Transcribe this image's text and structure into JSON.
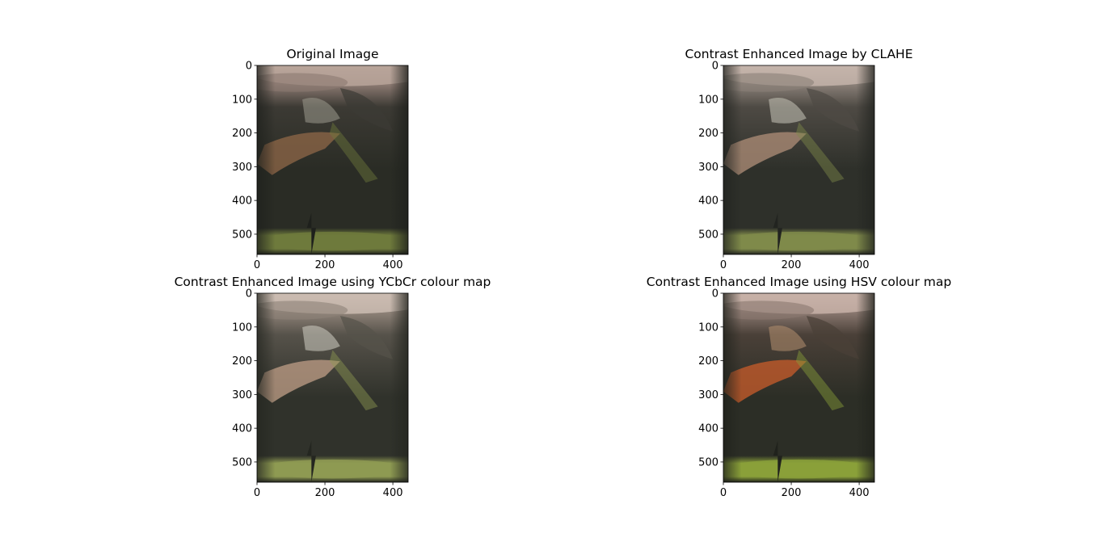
{
  "chart_data": [
    {
      "type": "image",
      "title": "Original Image",
      "xticks": [
        0,
        200,
        400
      ],
      "yticks": [
        0,
        100,
        200,
        300,
        400,
        500
      ],
      "xlim": [
        0,
        445
      ],
      "ylim": [
        560,
        0
      ],
      "palette": {
        "sky": "#b8a49a",
        "cloud": "#8c7a72",
        "rock": "#3c3a34",
        "forest": "#2a2c25",
        "slope": "#8a6446",
        "meadow": "#6e7a3c",
        "edge": "#1e201c",
        "highlight": "#9c9a8e"
      }
    },
    {
      "type": "image",
      "title": "Contrast Enhanced Image by CLAHE",
      "xticks": [
        0,
        200,
        400
      ],
      "yticks": [
        0,
        100,
        200,
        300,
        400,
        500
      ],
      "xlim": [
        0,
        445
      ],
      "ylim": [
        560,
        0
      ],
      "palette": {
        "sky": "#c4b4aa",
        "cloud": "#8a8078",
        "rock": "#4e4a44",
        "forest": "#2e302a",
        "slope": "#a98a74",
        "meadow": "#7f8a4a",
        "edge": "#222420",
        "highlight": "#c8c6ba"
      }
    },
    {
      "type": "image",
      "title": "Contrast Enhanced Image using YCbCr colour map",
      "xticks": [
        0,
        200,
        400
      ],
      "yticks": [
        0,
        100,
        200,
        300,
        400,
        500
      ],
      "xlim": [
        0,
        445
      ],
      "ylim": [
        560,
        0
      ],
      "palette": {
        "sky": "#cbbcb2",
        "cloud": "#8e8278",
        "rock": "#56524a",
        "forest": "#30322b",
        "slope": "#b89882",
        "meadow": "#8e9a52",
        "edge": "#242620",
        "highlight": "#d2d0c4"
      }
    },
    {
      "type": "image",
      "title": "Contrast Enhanced Image using HSV colour map",
      "xticks": [
        0,
        200,
        400
      ],
      "yticks": [
        0,
        100,
        200,
        300,
        400,
        500
      ],
      "xlim": [
        0,
        445
      ],
      "ylim": [
        560,
        0
      ],
      "palette": {
        "sky": "#c8b2a8",
        "cloud": "#8a7870",
        "rock": "#4a4038",
        "forest": "#2c2e26",
        "slope": "#c05a2a",
        "meadow": "#8aa03a",
        "edge": "#20221c",
        "highlight": "#b59070"
      }
    }
  ]
}
